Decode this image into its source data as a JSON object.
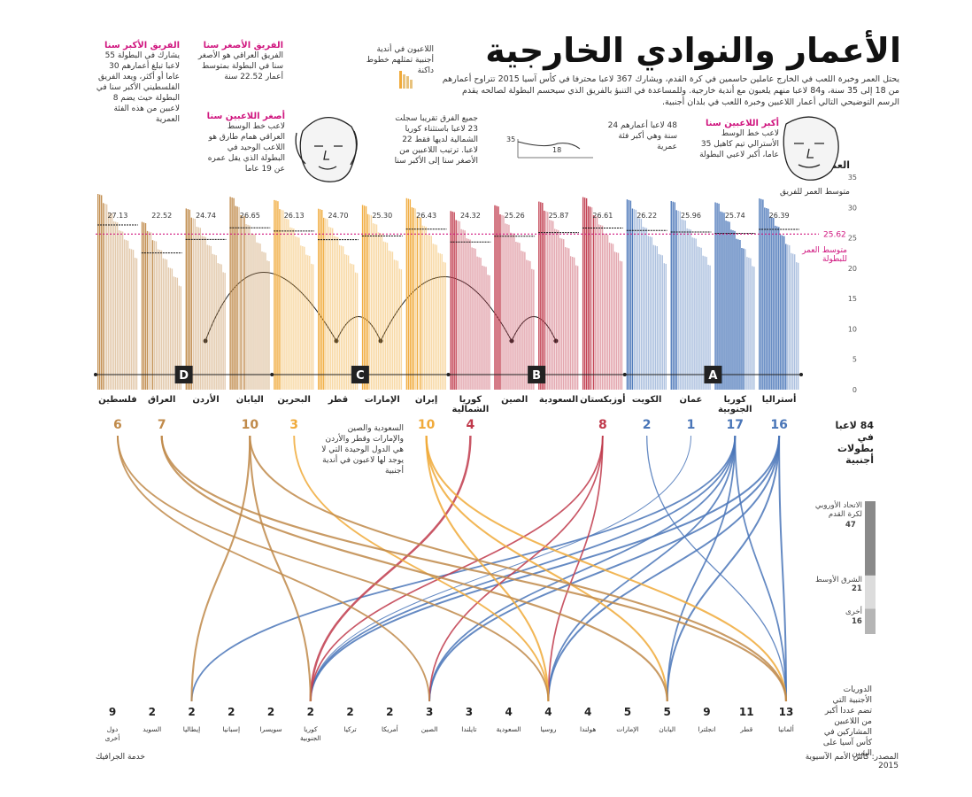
{
  "title": "الأعمار والنوادي الخارجية",
  "intro": "يحتل العمر وخبرة اللعب في الخارج عاملين حاسمين في كرة القدم، ويشارك 367 لاعبا محترفا في كأس آسيا 2015 تتراوح أعمارهم من 18 إلى 35 سنة، و84 لاعبا منهم يلعبون مع أندية خارجية. وللمساعدة في التنبؤ بالفريق الذي سيحسم البطولة لصالحه يقدم الرسم التوضيحي التالي أعمار اللاعبين وخبرة اللعب في بلدان أجنبية.",
  "annotations": {
    "oldest_team": {
      "head": "الفريق الأكبر سنا",
      "text": "يشارك في البطولة 55 لاعبا تبلغ أعمارهم 30 عاما أو أكثر، ويعد الفريق الفلسطيني الأكبر سنا في البطولة حيث يضم 8 لاعبين من هذه الفئة العمرية"
    },
    "youngest_team": {
      "head": "الفريق الأصغر سنا",
      "text": "الفريق العراقي هو الأصغر سنا في البطولة بمتوسط أعمار 22.52 سنة"
    },
    "youngest_player": {
      "head": "أصغر اللاعبين سنا",
      "text": "لاعب خط الوسط العراقي همام طارق هو اللاعب الوحيد في البطولة الذي يقل عمره عن 19 عاما"
    },
    "oldest_player": {
      "head": "أكبر اللاعبين سنا",
      "text": "لاعب خط الوسط الأسترالي تيم كاهيل 35 عاما، أكبر لاعبي البطولة"
    },
    "foreign_legend": "اللاعبون في أندية أجنبية تمثلهم خطوط داكنة",
    "youngest_note": "جميع الفرق تقريبا سجلت 23 لاعبا باستثناء كوريا الشمالية لديها فقط 22 لاعبا. ترتيب اللاعبين من الأصغر سنا إلى الأكبر سنا",
    "age_note": "48 لاعبا أعمارهم 24 سنة وهي أكبر فئة عمرية",
    "age_mini": {
      "max": "35",
      "min": "18"
    },
    "team_avg": "متوسط العمر للفريق",
    "tournament_avg_label": "متوسط العمر للبطولة",
    "no_foreign_note": "السعودية والصين والإمارات وقطر والأردن هي الدول الوحيدة التي لا يوجد لها لاعبون في أندية أجنبية",
    "leagues_note": "الدوريات الأجنبية التي تضم عددا أكبر من اللاعبين المشاركين في كأس آسيا على اليمين",
    "abroad_title": "84 لاعبا في بطولات أجنبية"
  },
  "chart_data": {
    "type": "bar",
    "ylabel": "العمر",
    "ylim": [
      0,
      35
    ],
    "yticks": [
      0,
      5,
      10,
      15,
      20,
      25,
      30,
      35
    ],
    "tournament_avg": 25.62,
    "tournament_avg_text": "25.62",
    "groups": [
      {
        "name": "A",
        "teams": [
          "أستراليا",
          "كوريا الجنوبية",
          "عمان",
          "الكويت"
        ]
      },
      {
        "name": "B",
        "teams": [
          "أوزبكستان",
          "السعودية",
          "الصين",
          "كوريا الشمالية"
        ]
      },
      {
        "name": "C",
        "teams": [
          "إيران",
          "الإمارات",
          "قطر",
          "البحرين"
        ]
      },
      {
        "name": "D",
        "teams": [
          "اليابان",
          "الأردن",
          "العراق",
          "فلسطين"
        ]
      }
    ],
    "teams": [
      {
        "name": "أستراليا",
        "group": "A",
        "avg": 26.39,
        "avg_text": "26.39",
        "abroad": 16,
        "color": "#4a76b8"
      },
      {
        "name": "كوريا الجنوبية",
        "group": "A",
        "avg": 25.74,
        "avg_text": "25.74",
        "abroad": 17,
        "color": "#4a76b8"
      },
      {
        "name": "عمان",
        "group": "A",
        "avg": 25.96,
        "avg_text": "25.96",
        "abroad": 1,
        "color": "#4a76b8"
      },
      {
        "name": "الكويت",
        "group": "A",
        "avg": 26.22,
        "avg_text": "26.22",
        "abroad": 2,
        "color": "#4a76b8"
      },
      {
        "name": "أوزبكستان",
        "group": "B",
        "avg": 26.61,
        "avg_text": "26.61",
        "abroad": 8,
        "color": "#c0394b"
      },
      {
        "name": "السعودية",
        "group": "B",
        "avg": 25.87,
        "avg_text": "25.87",
        "abroad": 0,
        "color": "#c0394b"
      },
      {
        "name": "الصين",
        "group": "B",
        "avg": 25.26,
        "avg_text": "25.26",
        "abroad": 0,
        "color": "#c0394b"
      },
      {
        "name": "كوريا الشمالية",
        "group": "B",
        "avg": 24.32,
        "avg_text": "24.32",
        "abroad": 4,
        "color": "#c0394b"
      },
      {
        "name": "إيران",
        "group": "C",
        "avg": 26.43,
        "avg_text": "26.43",
        "abroad": 10,
        "color": "#f0aa3a"
      },
      {
        "name": "الإمارات",
        "group": "C",
        "avg": 25.3,
        "avg_text": "25.30",
        "abroad": 0,
        "color": "#f0aa3a"
      },
      {
        "name": "قطر",
        "group": "C",
        "avg": 24.7,
        "avg_text": "24.70",
        "abroad": 0,
        "color": "#f0aa3a"
      },
      {
        "name": "البحرين",
        "group": "C",
        "avg": 26.13,
        "avg_text": "26.13",
        "abroad": 3,
        "color": "#f0aa3a"
      },
      {
        "name": "اليابان",
        "group": "D",
        "avg": 26.65,
        "avg_text": "26.65",
        "abroad": 10,
        "color": "#c08a4a"
      },
      {
        "name": "الأردن",
        "group": "D",
        "avg": 24.74,
        "avg_text": "24.74",
        "abroad": 0,
        "color": "#c08a4a"
      },
      {
        "name": "العراق",
        "group": "D",
        "avg": 22.52,
        "avg_text": "22.52",
        "abroad": 7,
        "color": "#c08a4a"
      },
      {
        "name": "فلسطين",
        "group": "D",
        "avg": 27.13,
        "avg_text": "27.13",
        "abroad": 6,
        "color": "#c08a4a"
      }
    ],
    "leagues": [
      {
        "name": "ألمانيا",
        "count": 13
      },
      {
        "name": "قطر",
        "count": 11
      },
      {
        "name": "انجلترا",
        "count": 9
      },
      {
        "name": "اليابان",
        "count": 5
      },
      {
        "name": "الإمارات",
        "count": 5
      },
      {
        "name": "هولندا",
        "count": 4
      },
      {
        "name": "روسيا",
        "count": 4
      },
      {
        "name": "السعودية",
        "count": 4
      },
      {
        "name": "تايلندا",
        "count": 3
      },
      {
        "name": "الصين",
        "count": 3
      },
      {
        "name": "أمريكا",
        "count": 2
      },
      {
        "name": "تركيا",
        "count": 2
      },
      {
        "name": "كوريا الجنوبية",
        "count": 2
      },
      {
        "name": "سويسرا",
        "count": 2
      },
      {
        "name": "إسبانيا",
        "count": 2
      },
      {
        "name": "إيطاليا",
        "count": 2
      },
      {
        "name": "السويد",
        "count": 2
      },
      {
        "name": "دول أخرى",
        "count": 9
      }
    ],
    "regions": [
      {
        "name": "الاتحاد الأوروبي لكرة القدم",
        "count": 47,
        "color": "#8a8a8a"
      },
      {
        "name": "الشرق الأوسط",
        "count": 21,
        "color": "#dcdcdc"
      },
      {
        "name": "أخرى",
        "count": 16,
        "color": "#b5b5b5"
      }
    ]
  },
  "footer": {
    "source": "المصدر: كأس الأمم الآسيوية 2015",
    "credit": "خدمة الجرافيك"
  }
}
